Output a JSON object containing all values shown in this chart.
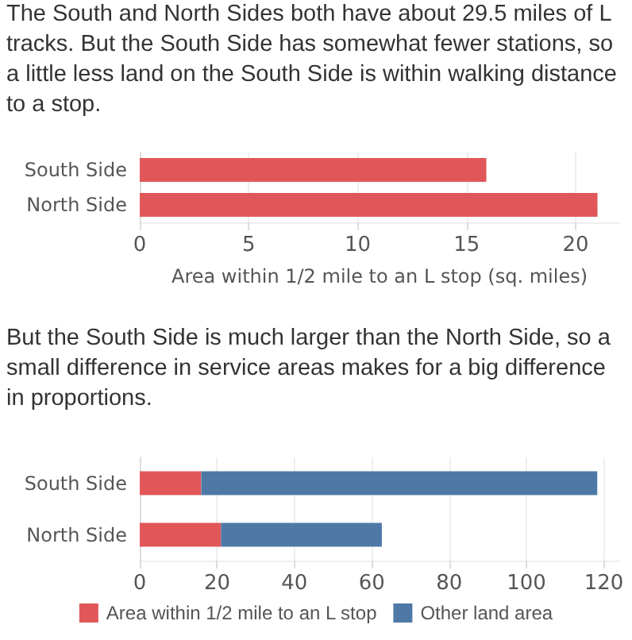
{
  "chart_data": [
    {
      "type": "bar",
      "orientation": "horizontal",
      "title": "The South and North Sides both have about 29.5 miles of L tracks. But the South Side has somewhat fewer stations, so a little less land on the South Side is within walking distance to a stop.",
      "categories": [
        "South Side",
        "North Side"
      ],
      "values": [
        15.9,
        21.0
      ],
      "color": "#e15759",
      "xlabel": "Area within 1/2 mile to an L stop (sq. miles)",
      "xlim": [
        0,
        22
      ],
      "xticks": [
        0,
        5,
        10,
        15,
        20
      ],
      "grid": "x"
    },
    {
      "type": "bar",
      "orientation": "horizontal",
      "stacked": true,
      "title": "But the South Side is much larger than the North Side, so a small difference in service areas makes for a big difference in proportions.",
      "categories": [
        "South Side",
        "North Side"
      ],
      "series": [
        {
          "name": "Area within 1/2 mile to an L stop",
          "color": "#e15759",
          "values": [
            15.9,
            21.0
          ]
        },
        {
          "name": "Other land area",
          "color": "#4e79a7",
          "values": [
            102.4,
            41.6
          ]
        }
      ],
      "xlim": [
        0,
        124
      ],
      "xticks": [
        0,
        20,
        40,
        60,
        80,
        100,
        120
      ],
      "grid": "x",
      "legend": "bottom"
    }
  ]
}
